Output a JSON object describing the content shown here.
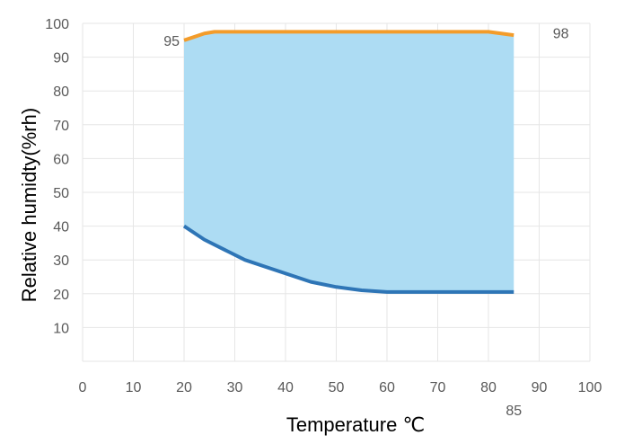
{
  "chart_data": {
    "type": "area",
    "title": "",
    "xlabel": "Temperature ℃",
    "ylabel": "Relative humidty(%rh)",
    "xlim": [
      0,
      100
    ],
    "ylim": [
      0,
      100
    ],
    "x_ticks": [
      "0",
      "10",
      "20",
      "30",
      "40",
      "50",
      "60",
      "70",
      "80",
      "90",
      "100"
    ],
    "y_ticks": [
      "10",
      "20",
      "30",
      "40",
      "50",
      "60",
      "70",
      "80",
      "90",
      "100"
    ],
    "grid": true,
    "legend": "none",
    "fill_between": [
      "upper",
      "lower"
    ],
    "series": [
      {
        "key": "upper",
        "color": "#F39C2A",
        "points": [
          {
            "x": 20,
            "y": 95
          },
          {
            "x": 22,
            "y": 96
          },
          {
            "x": 24,
            "y": 97
          },
          {
            "x": 26,
            "y": 97.5
          },
          {
            "x": 30,
            "y": 97.5
          },
          {
            "x": 40,
            "y": 97.5
          },
          {
            "x": 50,
            "y": 97.5
          },
          {
            "x": 60,
            "y": 97.5
          },
          {
            "x": 70,
            "y": 97.5
          },
          {
            "x": 80,
            "y": 97.5
          },
          {
            "x": 85,
            "y": 96.5
          }
        ]
      },
      {
        "key": "lower",
        "color": "#2E75B6",
        "points": [
          {
            "x": 20,
            "y": 40
          },
          {
            "x": 24,
            "y": 36
          },
          {
            "x": 28,
            "y": 33
          },
          {
            "x": 32,
            "y": 30
          },
          {
            "x": 36,
            "y": 28
          },
          {
            "x": 40,
            "y": 26
          },
          {
            "x": 45,
            "y": 23.5
          },
          {
            "x": 50,
            "y": 22
          },
          {
            "x": 55,
            "y": 21
          },
          {
            "x": 60,
            "y": 20.5
          },
          {
            "x": 70,
            "y": 20.5
          },
          {
            "x": 80,
            "y": 20.5
          },
          {
            "x": 85,
            "y": 20.5
          }
        ]
      }
    ],
    "fill_color": "#ADDCF3",
    "annotations": [
      {
        "text": "95",
        "near_x": 20,
        "near_y": 95
      },
      {
        "text": "98",
        "near_x": 90,
        "near_y": 98
      },
      {
        "text": "85",
        "near_x": 85,
        "near_y": 0
      }
    ]
  }
}
